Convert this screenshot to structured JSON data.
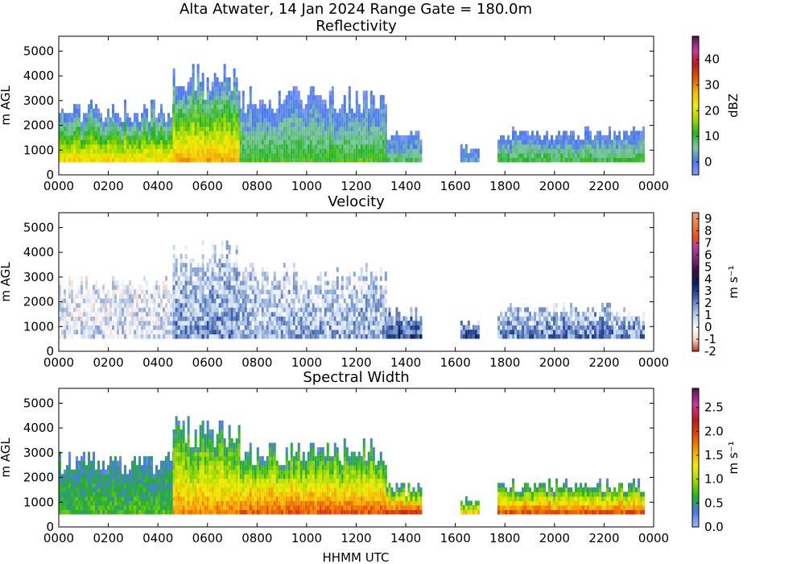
{
  "suptitle": "Alta Atwater, 14 Jan 2024 Range Gate = 180.0m",
  "xlabel": "HHMM UTC",
  "chart_data": [
    {
      "type": "heatmap",
      "title": "Reflectivity",
      "xlabel": "",
      "ylabel": "m AGL",
      "x_ticks": [
        "0000",
        "0200",
        "0400",
        "0600",
        "0800",
        "1000",
        "1200",
        "1400",
        "1600",
        "1800",
        "2000",
        "2200",
        "0000"
      ],
      "y_ticks": [
        0,
        1000,
        2000,
        3000,
        4000,
        5000
      ],
      "ylim": [
        0,
        5600
      ],
      "colorbar": {
        "label": "dBZ",
        "range": [
          -5,
          49
        ],
        "ticks": [
          0,
          10,
          20,
          30,
          40
        ]
      },
      "colorscale": [
        "#8a9cff",
        "#4a78f0",
        "#7fc8a0",
        "#22b422",
        "#9fd800",
        "#f0ee00",
        "#f5b800",
        "#e35a00",
        "#c01818",
        "#cc3aa0",
        "#4e1550"
      ],
      "echo_segments": [
        {
          "start_hour": 0.0,
          "end_hour": 4.6,
          "top_m": 2700,
          "core_dbz": 24
        },
        {
          "start_hour": 4.6,
          "end_hour": 7.3,
          "top_m": 4000,
          "core_dbz": 28
        },
        {
          "start_hour": 7.3,
          "end_hour": 13.2,
          "top_m": 3200,
          "core_dbz": 12
        },
        {
          "start_hour": 13.2,
          "end_hour": 14.6,
          "top_m": 1600,
          "core_dbz": 8
        },
        {
          "start_hour": 16.2,
          "end_hour": 16.9,
          "top_m": 1100,
          "core_dbz": 3
        },
        {
          "start_hour": 17.7,
          "end_hour": 23.6,
          "top_m": 1700,
          "core_dbz": 10
        }
      ]
    },
    {
      "type": "heatmap",
      "title": "Velocity",
      "xlabel": "",
      "ylabel": "m AGL",
      "x_ticks": [
        "0000",
        "0200",
        "0400",
        "0600",
        "0800",
        "1000",
        "1200",
        "1400",
        "1600",
        "1800",
        "2000",
        "2200",
        "0000"
      ],
      "y_ticks": [
        0,
        1000,
        2000,
        3000,
        4000,
        5000
      ],
      "ylim": [
        0,
        5600
      ],
      "colorbar": {
        "label": "m s⁻¹",
        "range": [
          -2,
          9.5
        ],
        "ticks": [
          -2,
          -1,
          0,
          1,
          2,
          3,
          4,
          5,
          6,
          7,
          8,
          9
        ]
      },
      "colorscale": [
        "#c0281c",
        "#f8d0c0",
        "#ffffff",
        "#c8d8ee",
        "#7a9ad0",
        "#2e4e9e",
        "#0a1e5a",
        "#3a1040",
        "#7a2a78",
        "#b040a0",
        "#f05018",
        "#f08040",
        "#f5a070"
      ],
      "echo_segments": [
        {
          "start_hour": 0.0,
          "end_hour": 4.6,
          "top_m": 2700,
          "mean_ms": 0.5
        },
        {
          "start_hour": 4.6,
          "end_hour": 7.3,
          "top_m": 4000,
          "mean_ms": 1.8
        },
        {
          "start_hour": 7.3,
          "end_hour": 13.2,
          "top_m": 3200,
          "mean_ms": 1.5
        },
        {
          "start_hour": 13.2,
          "end_hour": 14.6,
          "top_m": 1600,
          "mean_ms": 3.0
        },
        {
          "start_hour": 16.2,
          "end_hour": 16.9,
          "top_m": 1100,
          "mean_ms": 3.0
        },
        {
          "start_hour": 17.7,
          "end_hour": 23.6,
          "top_m": 1700,
          "mean_ms": 2.0
        }
      ]
    },
    {
      "type": "heatmap",
      "title": "Spectral Width",
      "xlabel": "HHMM UTC",
      "ylabel": "m AGL",
      "x_ticks": [
        "0000",
        "0200",
        "0400",
        "0600",
        "0800",
        "1000",
        "1200",
        "1400",
        "1600",
        "1800",
        "2000",
        "2200",
        "0000"
      ],
      "y_ticks": [
        0,
        1000,
        2000,
        3000,
        4000,
        5000
      ],
      "ylim": [
        0,
        5600
      ],
      "colorbar": {
        "label": "m s⁻¹",
        "range": [
          0,
          2.9
        ],
        "ticks": [
          "0.0",
          "0.5",
          "1.0",
          "1.5",
          "2.0",
          "2.5"
        ]
      },
      "colorscale": [
        "#a8b8ff",
        "#4a78f0",
        "#22b422",
        "#9fd800",
        "#f0ee00",
        "#f5a000",
        "#e84a00",
        "#c01818",
        "#cc3aa0",
        "#4e1550"
      ],
      "echo_segments": [
        {
          "start_hour": 0.0,
          "end_hour": 4.6,
          "top_m": 2700,
          "low_level_width": 0.7
        },
        {
          "start_hour": 4.6,
          "end_hour": 7.3,
          "top_m": 4000,
          "low_level_width": 1.7
        },
        {
          "start_hour": 7.3,
          "end_hour": 13.2,
          "top_m": 3200,
          "low_level_width": 1.9
        },
        {
          "start_hour": 13.2,
          "end_hour": 14.6,
          "top_m": 1600,
          "low_level_width": 2.0
        },
        {
          "start_hour": 16.2,
          "end_hour": 16.9,
          "top_m": 1100,
          "low_level_width": 1.4
        },
        {
          "start_hour": 17.7,
          "end_hour": 23.6,
          "top_m": 1700,
          "low_level_width": 1.9
        }
      ]
    }
  ]
}
